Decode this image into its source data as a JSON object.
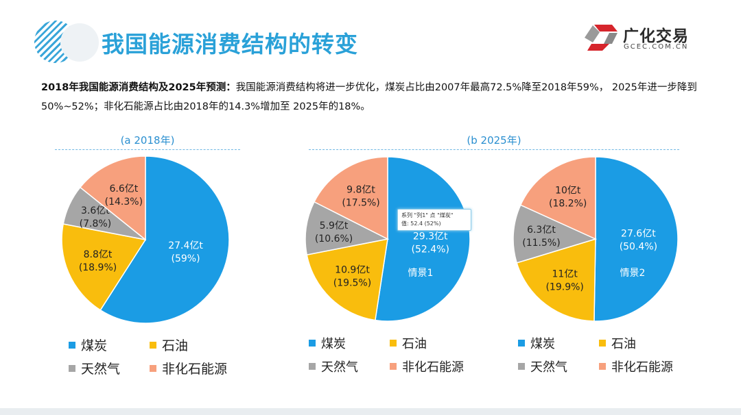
{
  "header": {
    "title": "我国能源消费结构的转变",
    "logo_text": "广化交易",
    "logo_url": "GCEC.COM.CN"
  },
  "description": {
    "bold": "2018年我国能源消费结构及2025年预测：",
    "text": "我国能源消费结构将进一步优化，煤炭占比由2007年最高72.5%降至2018年59%， 2025年进一步降到50%~52%；非化石能源占比由2018年的14.3%增加至 2025年的18%。"
  },
  "colors": {
    "煤炭": "#1b9ce4",
    "石油": "#f9bd0d",
    "天然气": "#a6a6a6",
    "非化石能源": "#f7a07d",
    "title": "#2aa1d8"
  },
  "sections": {
    "a": "(a 2018年)",
    "b": "(b 2025年)"
  },
  "tooltip": {
    "line1": "系列 \"列1\" 点 \"煤炭\"",
    "line2": "值: 52.4 (52%)"
  },
  "chart_data": [
    {
      "type": "pie",
      "title": "(a 2018年)",
      "categories": [
        "煤炭",
        "石油",
        "天然气",
        "非化石能源"
      ],
      "values": [
        27.4,
        8.8,
        3.6,
        6.6
      ],
      "percents": [
        59,
        18.9,
        7.8,
        14.3
      ],
      "labels": [
        [
          "27.4亿t",
          "(59%)"
        ],
        [
          "8.8亿t",
          "(18.9%)"
        ],
        [
          "3.6亿t",
          "(7.8%)"
        ],
        [
          "6.6亿t",
          "(14.3%)"
        ]
      ],
      "scenario": "",
      "legend": [
        "煤炭",
        "石油",
        "天然气",
        "非化石能源"
      ]
    },
    {
      "type": "pie",
      "title": "(b 2025年)",
      "categories": [
        "煤炭",
        "石油",
        "天然气",
        "非化石能源"
      ],
      "values": [
        29.3,
        10.9,
        5.9,
        9.8
      ],
      "percents": [
        52.4,
        19.5,
        10.6,
        17.5
      ],
      "labels": [
        [
          "29.3亿t",
          "(52.4%)"
        ],
        [
          "10.9亿t",
          "(19.5%)"
        ],
        [
          "5.9亿t",
          "(10.6%)"
        ],
        [
          "9.8亿t",
          "(17.5%)"
        ]
      ],
      "scenario": "情景1",
      "legend": [
        "煤炭",
        "石油",
        "天然气",
        "非化石能源"
      ]
    },
    {
      "type": "pie",
      "title": "(b 2025年)",
      "categories": [
        "煤炭",
        "石油",
        "天然气",
        "非化石能源"
      ],
      "values": [
        27.6,
        11,
        6.3,
        10
      ],
      "percents": [
        50.4,
        19.9,
        11.5,
        18.2
      ],
      "labels": [
        [
          "27.6亿t",
          "(50.4%)"
        ],
        [
          "11亿t",
          "(19.9%)"
        ],
        [
          "6.3亿t",
          "(11.5%)"
        ],
        [
          "10亿t",
          "(18.2%)"
        ]
      ],
      "scenario": "情景2",
      "legend": [
        "煤炭",
        "石油",
        "天然气",
        "非化石能源"
      ]
    }
  ]
}
